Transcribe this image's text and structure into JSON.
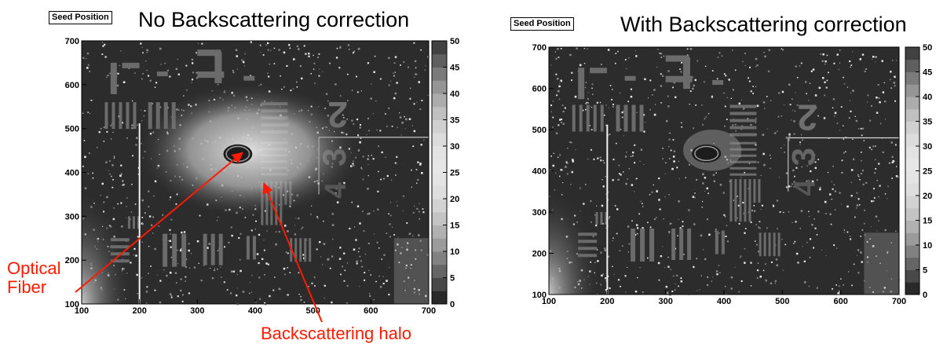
{
  "chart_data": [
    {
      "type": "heatmap",
      "tag": "Seed Position",
      "title": "No Backscattering correction",
      "x_ticks": [
        100,
        200,
        300,
        400,
        500,
        600,
        700
      ],
      "y_ticks": [
        100,
        200,
        300,
        400,
        500,
        600,
        700
      ],
      "xlim": [
        100,
        700
      ],
      "ylim": [
        100,
        700
      ],
      "z_ticks": [
        0,
        5,
        10,
        15,
        20,
        25,
        30,
        35,
        40,
        45,
        50
      ],
      "zlim": [
        0,
        50
      ],
      "halo": true,
      "annotations": [
        {
          "text_lines": [
            "Optical",
            "Fiber"
          ],
          "points_to": "fiber spot"
        },
        {
          "text_lines": [
            "Backscattering halo"
          ],
          "points_to": "halo region"
        }
      ]
    },
    {
      "type": "heatmap",
      "tag": "Seed Position",
      "title": "With Backscattering correction",
      "x_ticks": [
        100,
        200,
        300,
        400,
        500,
        600,
        700
      ],
      "y_ticks": [
        100,
        200,
        300,
        400,
        500,
        600,
        700
      ],
      "xlim": [
        100,
        700
      ],
      "ylim": [
        100,
        700
      ],
      "z_ticks": [
        0,
        5,
        10,
        15,
        20,
        25,
        30,
        35,
        40,
        45,
        50
      ],
      "zlim": [
        0,
        50
      ],
      "halo": false,
      "annotations": []
    }
  ],
  "colors": {
    "annotation": "#ff1a00",
    "background": "#ffffff"
  }
}
